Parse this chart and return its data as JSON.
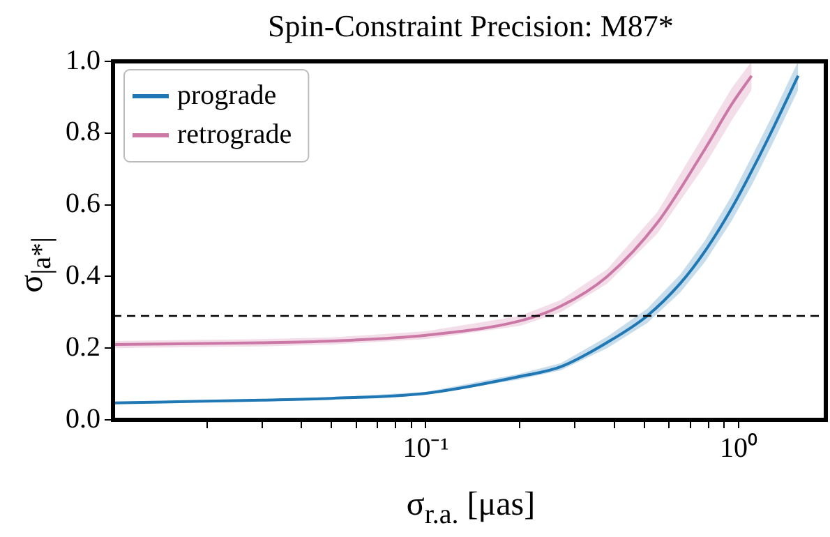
{
  "chart_data": {
    "type": "line",
    "title": "Spin-Constraint Precision: M87*",
    "xlabel": "σ$_{r.a.}$ [μas]",
    "ylabel": "σ$_{|a*|}$",
    "log": "x",
    "xlim": [
      0.01,
      1.9
    ],
    "xticks": [
      {
        "value": 0.02,
        "label": null
      },
      {
        "value": 0.03,
        "label": null
      },
      {
        "value": 0.04,
        "label": null
      },
      {
        "value": 0.05,
        "label": null
      },
      {
        "value": 0.06,
        "label": null
      },
      {
        "value": 0.07,
        "label": null
      },
      {
        "value": 0.08,
        "label": null
      },
      {
        "value": 0.09,
        "label": null
      },
      {
        "value": 0.1,
        "label": "10⁻¹"
      },
      {
        "value": 0.2,
        "label": null
      },
      {
        "value": 0.3,
        "label": null
      },
      {
        "value": 0.4,
        "label": null
      },
      {
        "value": 0.5,
        "label": null
      },
      {
        "value": 0.6,
        "label": null
      },
      {
        "value": 0.7,
        "label": null
      },
      {
        "value": 0.8,
        "label": null
      },
      {
        "value": 0.9,
        "label": null
      },
      {
        "value": 1,
        "label": "10⁰"
      }
    ],
    "ylim": [
      0,
      1
    ],
    "yticks": [
      {
        "value": 0,
        "label": "0.0"
      },
      {
        "value": 0.2,
        "label": "0.2"
      },
      {
        "value": 0.4,
        "label": "0.4"
      },
      {
        "value": 0.6,
        "label": "0.6"
      },
      {
        "value": 0.8,
        "label": "0.8"
      },
      {
        "value": 1,
        "label": "1.0"
      }
    ],
    "grid": false,
    "legend": "top left",
    "marker": "none",
    "line_style": "solid",
    "ref_lines": [
      {
        "axis": "y",
        "value": 0.29,
        "color": "#000000",
        "line_style": "dashed"
      }
    ],
    "series": [
      {
        "name": "prograde",
        "color": "#1f77b4",
        "x": [
          0.01,
          0.03,
          0.05,
          0.1,
          0.2,
          0.27,
          0.38,
          0.51,
          0.65,
          0.78,
          0.95,
          1.11,
          1.3,
          1.55
        ],
        "values": [
          0.047,
          0.055,
          0.06,
          0.074,
          0.121,
          0.148,
          0.216,
          0.29,
          0.38,
          0.47,
          0.59,
          0.7,
          0.82,
          0.96
        ],
        "lower": [
          0.044,
          0.052,
          0.057,
          0.07,
          0.113,
          0.138,
          0.2,
          0.27,
          0.355,
          0.44,
          0.555,
          0.66,
          0.78,
          0.92
        ],
        "upper": [
          0.05,
          0.058,
          0.063,
          0.078,
          0.129,
          0.158,
          0.232,
          0.31,
          0.405,
          0.5,
          0.625,
          0.74,
          0.86,
          1.0
        ]
      },
      {
        "name": "retrograde",
        "color": "#cc79a7",
        "x": [
          0.01,
          0.03,
          0.05,
          0.1,
          0.2,
          0.27,
          0.38,
          0.55,
          0.78,
          0.95,
          1.1
        ],
        "values": [
          0.21,
          0.215,
          0.22,
          0.236,
          0.276,
          0.317,
          0.4,
          0.55,
          0.755,
          0.88,
          0.96
        ],
        "lower": [
          0.2,
          0.205,
          0.21,
          0.225,
          0.262,
          0.3,
          0.38,
          0.52,
          0.71,
          0.835,
          0.92
        ],
        "upper": [
          0.22,
          0.225,
          0.23,
          0.247,
          0.29,
          0.334,
          0.42,
          0.58,
          0.8,
          0.925,
          1.0
        ]
      }
    ]
  }
}
